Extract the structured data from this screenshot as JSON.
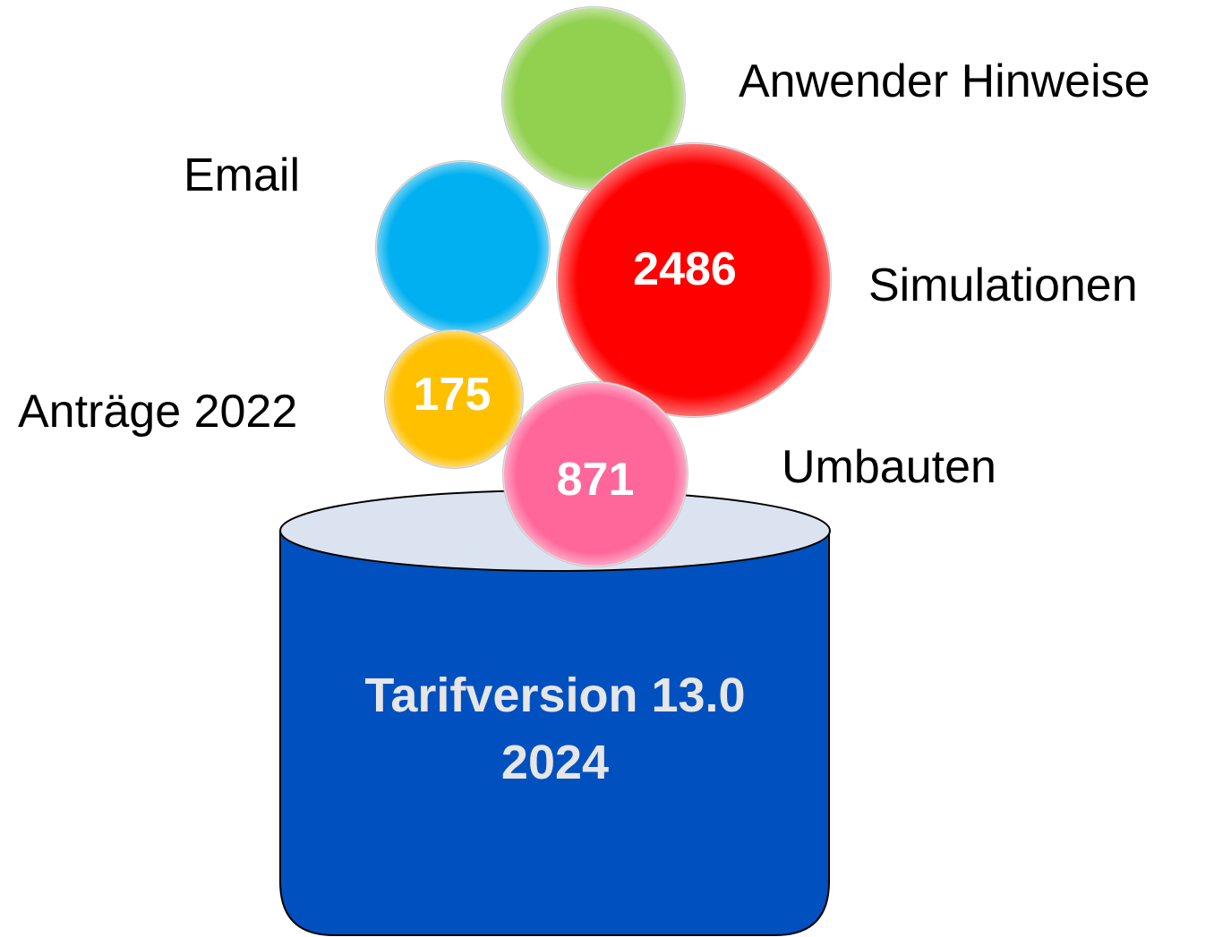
{
  "bubbles": [
    {
      "label": "Anwender Hinweise"
    },
    {
      "label": "Email"
    },
    {
      "label": "Simulationen",
      "value": 2486
    },
    {
      "label": "Anträge 2022",
      "value": 175
    },
    {
      "label": "Umbauten",
      "value": 871
    }
  ],
  "container": {
    "title": "Tarifversion 13.0",
    "subtitle": "2024"
  }
}
